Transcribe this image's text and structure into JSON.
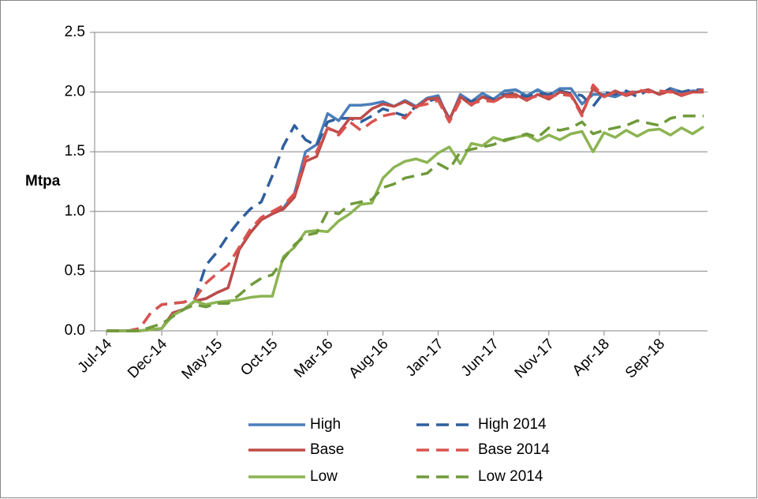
{
  "chart_data": {
    "type": "line",
    "ylabel": "Mtpa",
    "categories": [
      "Jul-14",
      null,
      null,
      null,
      null,
      "Dec-14",
      null,
      null,
      null,
      null,
      "May-15",
      null,
      null,
      null,
      null,
      "Oct-15",
      null,
      null,
      null,
      null,
      "Mar-16",
      null,
      null,
      null,
      null,
      "Aug-16",
      null,
      null,
      null,
      null,
      "Jan-17",
      null,
      null,
      null,
      null,
      "Jun-17",
      null,
      null,
      null,
      null,
      "Nov-17",
      null,
      null,
      null,
      null,
      "Apr-18",
      null,
      null,
      null,
      null,
      "Sep-18",
      null,
      null,
      null,
      null
    ],
    "ylim": [
      0,
      2.5
    ],
    "yticks": [
      {
        "value": 0,
        "label": "0.0"
      },
      0.5,
      {
        "value": 1,
        "label": "1.0"
      },
      1.5,
      {
        "value": 2,
        "label": "2.0"
      },
      2.5
    ],
    "grid": true,
    "legend": "bottom",
    "series": [
      {
        "name": "High",
        "color": "#4a7ebb",
        "dashed": false,
        "values": [
          0,
          0,
          0,
          0,
          0.01,
          0.02,
          0.15,
          0.18,
          0.25,
          0.27,
          0.32,
          0.36,
          0.68,
          0.82,
          0.93,
          0.98,
          1.03,
          1.15,
          1.5,
          1.56,
          1.82,
          1.76,
          1.89,
          1.89,
          1.9,
          1.92,
          1.88,
          1.93,
          1.88,
          1.95,
          1.97,
          1.76,
          1.98,
          1.92,
          1.99,
          1.94,
          2.01,
          2.02,
          1.97,
          2.02,
          1.97,
          2.03,
          2.03,
          1.9,
          1.98,
          1.98,
          1.96,
          2,
          2,
          2.02,
          1.98,
          2.03,
          2,
          2.01,
          2.01
        ]
      },
      {
        "name": "High 2014",
        "color": "#2f5f9e",
        "dashed": true,
        "values": [
          0,
          0,
          0,
          0.02,
          0.15,
          0.22,
          0.23,
          0.24,
          0.27,
          0.55,
          0.66,
          0.8,
          0.92,
          1.02,
          1.08,
          1.3,
          1.55,
          1.72,
          1.6,
          1.55,
          1.75,
          1.78,
          1.78,
          1.75,
          1.8,
          1.86,
          1.83,
          1.8,
          1.88,
          1.92,
          1.95,
          1.78,
          1.95,
          1.92,
          1.96,
          1.94,
          1.98,
          1.99,
          1.96,
          1.99,
          1.98,
          2.01,
          1.99,
          1.97,
          1.88,
          2,
          1.98,
          2.01,
          1.96,
          2.02,
          1.98,
          2.03,
          2,
          2.02,
          2.02
        ]
      },
      {
        "name": "Base",
        "color": "#be4b48",
        "dashed": false,
        "values": [
          0,
          0,
          0,
          0,
          0.01,
          0.02,
          0.15,
          0.18,
          0.25,
          0.27,
          0.32,
          0.36,
          0.68,
          0.82,
          0.93,
          0.98,
          1.02,
          1.12,
          1.42,
          1.46,
          1.7,
          1.66,
          1.78,
          1.78,
          1.86,
          1.9,
          1.88,
          1.92,
          1.87,
          1.94,
          1.95,
          1.77,
          1.96,
          1.89,
          1.96,
          1.92,
          1.97,
          1.98,
          1.93,
          1.98,
          1.94,
          2,
          1.98,
          1.82,
          2.03,
          1.96,
          2.01,
          1.97,
          2,
          2.02,
          1.98,
          2.01,
          1.97,
          2,
          2
        ]
      },
      {
        "name": "Base 2014",
        "color": "#d9534f",
        "dashed": true,
        "values": [
          0,
          0,
          0,
          0.02,
          0.15,
          0.22,
          0.23,
          0.24,
          0.27,
          0.4,
          0.48,
          0.55,
          0.7,
          0.85,
          0.95,
          1,
          1.05,
          1.15,
          1.45,
          1.5,
          1.7,
          1.64,
          1.75,
          1.68,
          1.75,
          1.8,
          1.82,
          1.78,
          1.88,
          1.9,
          1.93,
          1.75,
          1.93,
          1.9,
          1.93,
          1.92,
          1.96,
          1.96,
          1.94,
          1.97,
          1.96,
          1.98,
          1.97,
          1.8,
          2.06,
          1.96,
          2,
          1.98,
          2.02,
          2,
          2.01,
          2,
          1.98,
          2,
          2.02
        ]
      },
      {
        "name": "Low",
        "color": "#8cb453",
        "dashed": false,
        "values": [
          0,
          0,
          0,
          0,
          0.01,
          0.02,
          0.13,
          0.18,
          0.25,
          0.22,
          0.24,
          0.25,
          0.26,
          0.28,
          0.29,
          0.29,
          0.62,
          0.7,
          0.83,
          0.84,
          0.83,
          0.92,
          0.98,
          1.06,
          1.07,
          1.28,
          1.37,
          1.42,
          1.44,
          1.41,
          1.49,
          1.54,
          1.4,
          1.57,
          1.55,
          1.62,
          1.59,
          1.62,
          1.64,
          1.59,
          1.64,
          1.6,
          1.65,
          1.67,
          1.5,
          1.66,
          1.62,
          1.68,
          1.63,
          1.68,
          1.69,
          1.64,
          1.7,
          1.65,
          1.71
        ]
      },
      {
        "name": "Low 2014",
        "color": "#6f9a3a",
        "dashed": true,
        "values": [
          0,
          0,
          0,
          0,
          0.03,
          0.06,
          0.12,
          0.18,
          0.22,
          0.2,
          0.23,
          0.23,
          0.3,
          0.38,
          0.44,
          0.47,
          0.6,
          0.72,
          0.8,
          0.82,
          1,
          0.98,
          1.06,
          1.08,
          1.1,
          1.2,
          1.23,
          1.28,
          1.3,
          1.32,
          1.4,
          1.35,
          1.5,
          1.52,
          1.54,
          1.56,
          1.6,
          1.62,
          1.65,
          1.62,
          1.7,
          1.68,
          1.7,
          1.75,
          1.65,
          1.68,
          1.7,
          1.72,
          1.76,
          1.74,
          1.72,
          1.78,
          1.8,
          1.8,
          1.8
        ]
      }
    ]
  }
}
